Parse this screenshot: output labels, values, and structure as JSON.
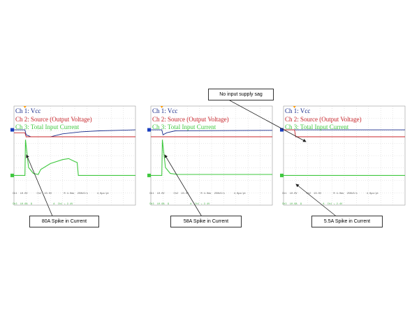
{
  "chart_data": [
    {
      "type": "line",
      "legend": [
        "Ch 1:  Vcc",
        "Ch 2:  Source (Output Voltage)",
        "Ch 3:  Total Input Current"
      ],
      "series": [
        {
          "name": "Ch 1:  Vcc",
          "color": "#1a2d8c",
          "x": [
            0,
            0.09,
            0.1,
            0.14,
            0.3,
            0.4,
            0.55,
            0.7,
            0.85,
            1.0
          ],
          "y": [
            0.24,
            0.24,
            0.29,
            0.31,
            0.31,
            0.28,
            0.26,
            0.25,
            0.245,
            0.24
          ]
        },
        {
          "name": "Ch 2:  Source (Output Voltage)",
          "color": "#c8242a",
          "x": [
            0,
            0.09,
            0.1,
            0.14,
            1.0
          ],
          "y": [
            0.27,
            0.27,
            0.31,
            0.31,
            0.31
          ]
        },
        {
          "name": "Ch 3:  Total Input Current",
          "color": "#3fc83f",
          "x": [
            0,
            0.09,
            0.095,
            0.12,
            0.16,
            0.2,
            0.22,
            0.3,
            0.4,
            0.45,
            0.5,
            0.52,
            0.53,
            0.6,
            1.0
          ],
          "y": [
            0.7,
            0.7,
            0.34,
            0.62,
            0.68,
            0.69,
            0.64,
            0.58,
            0.54,
            0.53,
            0.56,
            0.57,
            0.7,
            0.7,
            0.7
          ]
        }
      ]
    },
    {
      "type": "line",
      "legend": [
        "Ch 1:  Vcc",
        "Ch 2:  Source (Output Voltage)",
        "Ch 3:  Total Input Current"
      ],
      "series": [
        {
          "name": "Ch 1:  Vcc",
          "color": "#1a2d8c",
          "x": [
            0,
            0.09,
            0.1,
            0.13,
            0.2,
            1.0
          ],
          "y": [
            0.24,
            0.24,
            0.29,
            0.27,
            0.25,
            0.245
          ]
        },
        {
          "name": "Ch 2:  Source (Output Voltage)",
          "color": "#c8242a",
          "x": [
            0,
            0.09,
            0.1,
            1.0
          ],
          "y": [
            0.31,
            0.31,
            0.31,
            0.31
          ]
        },
        {
          "name": "Ch 3:  Total Input Current",
          "color": "#3fc83f",
          "x": [
            0,
            0.09,
            0.095,
            0.12,
            0.16,
            0.22,
            0.3,
            0.4,
            1.0
          ],
          "y": [
            0.7,
            0.7,
            0.34,
            0.62,
            0.68,
            0.69,
            0.69,
            0.69,
            0.69
          ]
        }
      ]
    },
    {
      "type": "line",
      "legend": [
        "Ch 1:  Vcc",
        "Ch 2:  Source (Output Voltage)",
        "Ch 3:  Total Input Current"
      ],
      "series": [
        {
          "name": "Ch 1:  Vcc",
          "color": "#1a2d8c",
          "x": [
            0,
            1.0
          ],
          "y": [
            0.24,
            0.24
          ]
        },
        {
          "name": "Ch 2:  Source (Output Voltage)",
          "color": "#c8242a",
          "x": [
            0,
            0.09,
            0.1,
            1.0
          ],
          "y": [
            0.24,
            0.24,
            0.31,
            0.31
          ]
        },
        {
          "name": "Ch 3:  Total Input Current",
          "color": "#3fc83f",
          "x": [
            0,
            1.0
          ],
          "y": [
            0.7,
            0.7
          ]
        }
      ]
    }
  ],
  "scopes": [
    {
      "status_1": "Ch1  10.0V      Ch2  10.0V        M 4.0ms  250kS/s      4.0µs/pt",
      "status_2": "Ch3  10.0A  Ω              A  Ch1 ↘ 2.4V"
    },
    {
      "status_1": "Ch1  10.0V      Ch2  10.0V        M 4.0ms  250kS/s      4.0µs/pt",
      "status_2": "Ch3  10.0A  Ω              A  Ch1 ↘ 2.4V"
    },
    {
      "status_1": "Ch1  10.0V      Ch2  10.0V        M 4.0ms  250kS/s      4.0µs/pt",
      "status_2": "Ch3  10.0A  Ω              A  Ch1 ↘ 2.4V"
    }
  ],
  "callouts": {
    "no_sag": "No input supply sag",
    "spike_80": "80A Spike in Current",
    "spike_58": "58A Spike in Current",
    "spike_55": "5.5A Spike in Current"
  },
  "colors": {
    "ch1": "#1a2d8c",
    "ch2": "#c8242a",
    "ch3": "#3fc83f",
    "grid": "#c4c4c4",
    "marker": "#1a3fbf"
  }
}
